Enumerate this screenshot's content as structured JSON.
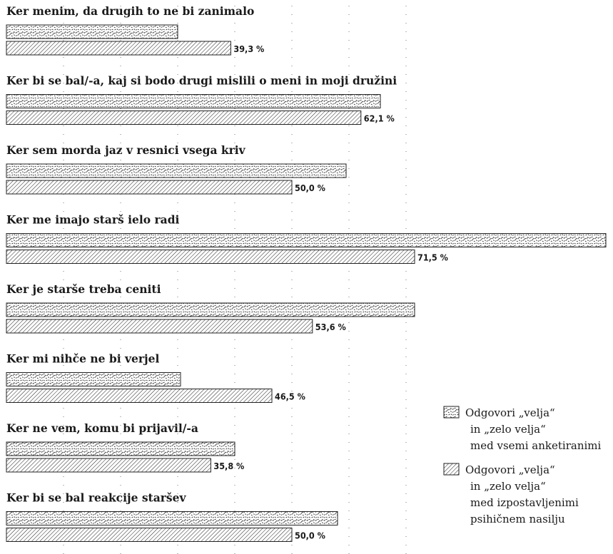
{
  "chart_data": {
    "type": "bar",
    "orientation": "horizontal",
    "xlim": [
      0,
      100
    ],
    "grid": true,
    "legend_position": "bottom-right",
    "categories": [
      "Ker menim, da drugih to ne bi zanimalo",
      "Ker bi se bal/-a, kaj si bodo drugi mislili o meni in moji družini",
      "Ker sem morda jaz v resnici vsega kriv",
      "Ker me imajo starš ielo radi",
      "Ker je starše treba ceniti",
      "Ker mi nihče ne bi verjel",
      "Ker ne vem, komu bi prijavil/-a",
      "Ker bi se bal reakcije staršev"
    ],
    "series": [
      {
        "name": "Odgovori „velja“ in „zelo velja“ med vsemi anketiranimi",
        "pattern": "noise",
        "values": [
          30.0,
          65.5,
          59.5,
          105.0,
          71.5,
          30.5,
          40.0,
          58.0
        ]
      },
      {
        "name": "Odgovori „velja“ in „zelo velja“ med izpostavljenimi psihičnem nasilju",
        "pattern": "hatch",
        "values": [
          39.3,
          62.1,
          50.0,
          71.5,
          53.6,
          46.5,
          35.8,
          50.0
        ],
        "labels": [
          "39,3 %",
          "62,1 %",
          "50,0 %",
          "71,5 %",
          "53,6 %",
          "46,5 %",
          "35,8 %",
          "50,0 %"
        ]
      }
    ],
    "legend": [
      {
        "pattern": "noise",
        "lines": [
          "Odgovori „velja“",
          "in „zelo velja“",
          "med vsemi anketiranimi"
        ]
      },
      {
        "pattern": "hatch",
        "lines": [
          "Odgovori „velja“",
          "in „zelo velja“",
          "med izpostavljenimi",
          "psihičnem nasilju"
        ]
      }
    ]
  }
}
